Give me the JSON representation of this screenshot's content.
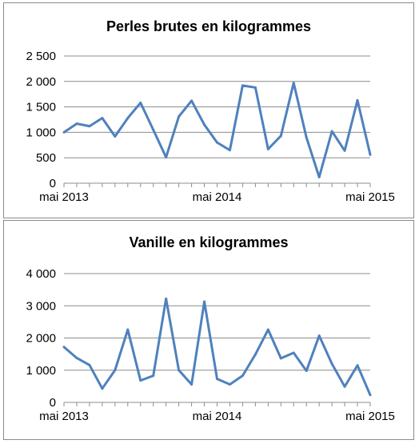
{
  "chart_data": [
    {
      "type": "line",
      "title": "Perles brutes en kilogrammes",
      "xlabel": "",
      "ylabel": "",
      "x_tick_labels": [
        "mai 2013",
        "mai 2014",
        "mai 2015"
      ],
      "y_tick_labels": [
        "0",
        "500",
        "1 000",
        "1 500",
        "2 000",
        "2 500"
      ],
      "ylim": [
        0,
        2500
      ],
      "grid": true,
      "legend": "none",
      "series_color": "#4F81BD",
      "series": [
        {
          "values": [
            1000,
            1170,
            1120,
            1280,
            920,
            1280,
            1580,
            1050,
            510,
            1310,
            1620,
            1150,
            800,
            650,
            1920,
            1880,
            670,
            930,
            1970,
            900,
            120,
            1020,
            640,
            1630,
            560
          ]
        }
      ]
    },
    {
      "type": "line",
      "title": "Vanille en kilogrammes",
      "xlabel": "",
      "ylabel": "",
      "x_tick_labels": [
        "mai 2013",
        "mai 2014",
        "mai 2015"
      ],
      "y_tick_labels": [
        "0",
        "1 000",
        "2 000",
        "3 000",
        "4 000"
      ],
      "ylim": [
        0,
        4000
      ],
      "grid": true,
      "legend": "none",
      "series_color": "#4F81BD",
      "series": [
        {
          "values": [
            1720,
            1380,
            1160,
            430,
            1000,
            2260,
            680,
            830,
            3220,
            1000,
            560,
            3130,
            730,
            560,
            830,
            1490,
            2260,
            1370,
            1540,
            980,
            2070,
            1200,
            490,
            1150,
            230
          ]
        }
      ]
    }
  ]
}
